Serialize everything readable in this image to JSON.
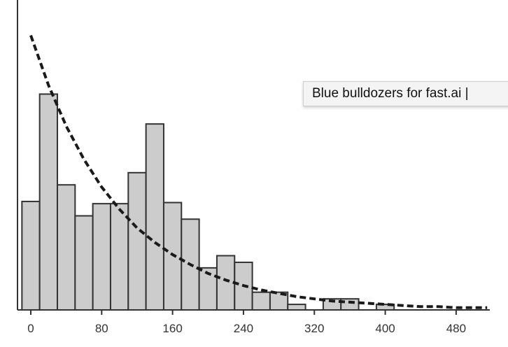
{
  "chart_data": {
    "type": "bar",
    "subtype": "histogram",
    "bin_width": 20,
    "bins": [
      {
        "x0": -10,
        "x1": 10,
        "value": 98
      },
      {
        "x0": 10,
        "x1": 30,
        "value": 195
      },
      {
        "x0": 30,
        "x1": 50,
        "value": 113
      },
      {
        "x0": 50,
        "x1": 70,
        "value": 85
      },
      {
        "x0": 70,
        "x1": 90,
        "value": 96
      },
      {
        "x0": 90,
        "x1": 110,
        "value": 96
      },
      {
        "x0": 110,
        "x1": 130,
        "value": 124
      },
      {
        "x0": 130,
        "x1": 150,
        "value": 168
      },
      {
        "x0": 150,
        "x1": 170,
        "value": 97
      },
      {
        "x0": 170,
        "x1": 190,
        "value": 82
      },
      {
        "x0": 190,
        "x1": 210,
        "value": 38
      },
      {
        "x0": 210,
        "x1": 230,
        "value": 49
      },
      {
        "x0": 230,
        "x1": 250,
        "value": 43
      },
      {
        "x0": 250,
        "x1": 270,
        "value": 16
      },
      {
        "x0": 270,
        "x1": 290,
        "value": 16
      },
      {
        "x0": 290,
        "x1": 310,
        "value": 5
      },
      {
        "x0": 310,
        "x1": 330,
        "value": 0
      },
      {
        "x0": 330,
        "x1": 350,
        "value": 10
      },
      {
        "x0": 350,
        "x1": 370,
        "value": 10
      },
      {
        "x0": 370,
        "x1": 390,
        "value": 0
      },
      {
        "x0": 390,
        "x1": 410,
        "value": 5
      }
    ],
    "curve": {
      "style": "dashed",
      "points": [
        [
          0,
          248
        ],
        [
          20,
          203
        ],
        [
          40,
          166
        ],
        [
          60,
          136
        ],
        [
          80,
          111
        ],
        [
          100,
          91
        ],
        [
          120,
          74
        ],
        [
          140,
          61
        ],
        [
          160,
          50
        ],
        [
          180,
          41
        ],
        [
          200,
          33
        ],
        [
          220,
          27
        ],
        [
          240,
          22
        ],
        [
          260,
          18
        ],
        [
          280,
          15
        ],
        [
          300,
          12
        ],
        [
          320,
          10
        ],
        [
          340,
          8
        ],
        [
          360,
          7
        ],
        [
          380,
          6
        ],
        [
          400,
          5
        ],
        [
          420,
          4
        ],
        [
          440,
          3
        ],
        [
          460,
          3
        ],
        [
          480,
          2
        ],
        [
          500,
          2
        ],
        [
          515,
          2
        ]
      ]
    },
    "xlim": [
      -15,
      518
    ],
    "ylim": [
      0,
      280
    ],
    "x_ticks": [
      0,
      80,
      160,
      240,
      320,
      400,
      480
    ],
    "x_tick_labels": [
      "0",
      "80",
      "160",
      "240",
      "320",
      "400",
      "480"
    ],
    "xlabel": "",
    "ylabel": "",
    "title": "",
    "grid": false,
    "colors": {
      "bar_fill": "#cccccc",
      "bar_stroke": "#333333",
      "curve": "#1a1a1a",
      "axis": "#333333"
    }
  },
  "tooltip": {
    "text": "Blue bulldozers for fast.ai |"
  }
}
